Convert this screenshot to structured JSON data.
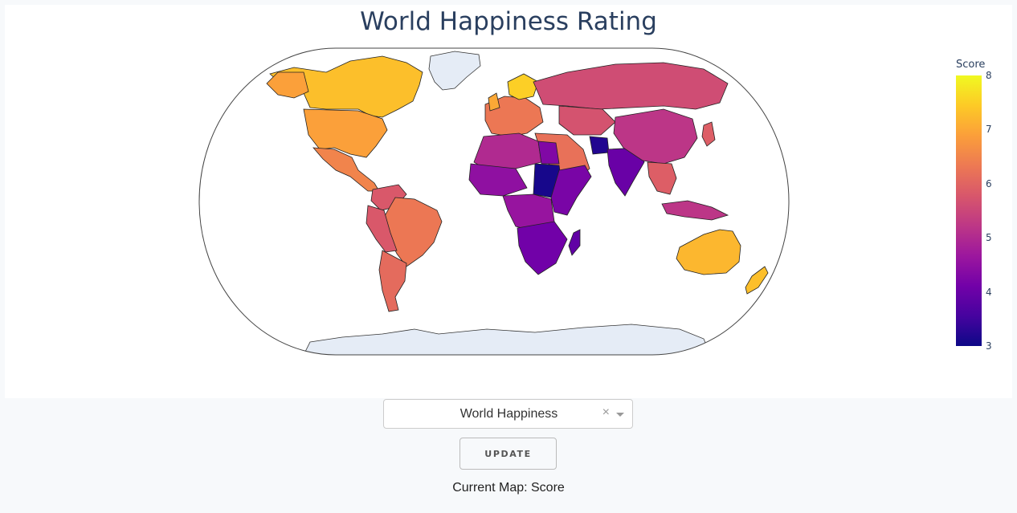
{
  "map": {
    "title": "World Happiness Rating",
    "projection": "natural earth",
    "colorscale": [
      "#0d0887",
      "#46039f",
      "#7201a8",
      "#9c179e",
      "#bd3786",
      "#d8576b",
      "#ed7953",
      "#fb9f3a",
      "#fdca26",
      "#f0f921"
    ],
    "no_data_color": "#e5ecf6",
    "colorbar": {
      "title": "Score",
      "range": [
        3,
        8
      ],
      "ticks": [
        "3",
        "4",
        "5",
        "6",
        "7",
        "8"
      ]
    },
    "regions": [
      {
        "name": "Nordic countries",
        "score": 7.5
      },
      {
        "name": "Canada",
        "score": 7.3
      },
      {
        "name": "Australia",
        "score": 7.2
      },
      {
        "name": "New Zealand",
        "score": 7.3
      },
      {
        "name": "United States",
        "score": 6.9
      },
      {
        "name": "Brazil",
        "score": 6.3
      },
      {
        "name": "Argentina",
        "score": 6.1
      },
      {
        "name": "Russia",
        "score": 5.6
      },
      {
        "name": "China",
        "score": 5.2
      },
      {
        "name": "India",
        "score": 4.0
      },
      {
        "name": "Afghanistan",
        "score": 3.2
      },
      {
        "name": "South Sudan",
        "score": 3.1
      },
      {
        "name": "Madagascar",
        "score": 3.9
      }
    ]
  },
  "controls": {
    "dropdown_value": "World Happiness",
    "clear_symbol": "×",
    "update_label": "Update"
  },
  "status": {
    "current_map": "Current Map: Score"
  }
}
